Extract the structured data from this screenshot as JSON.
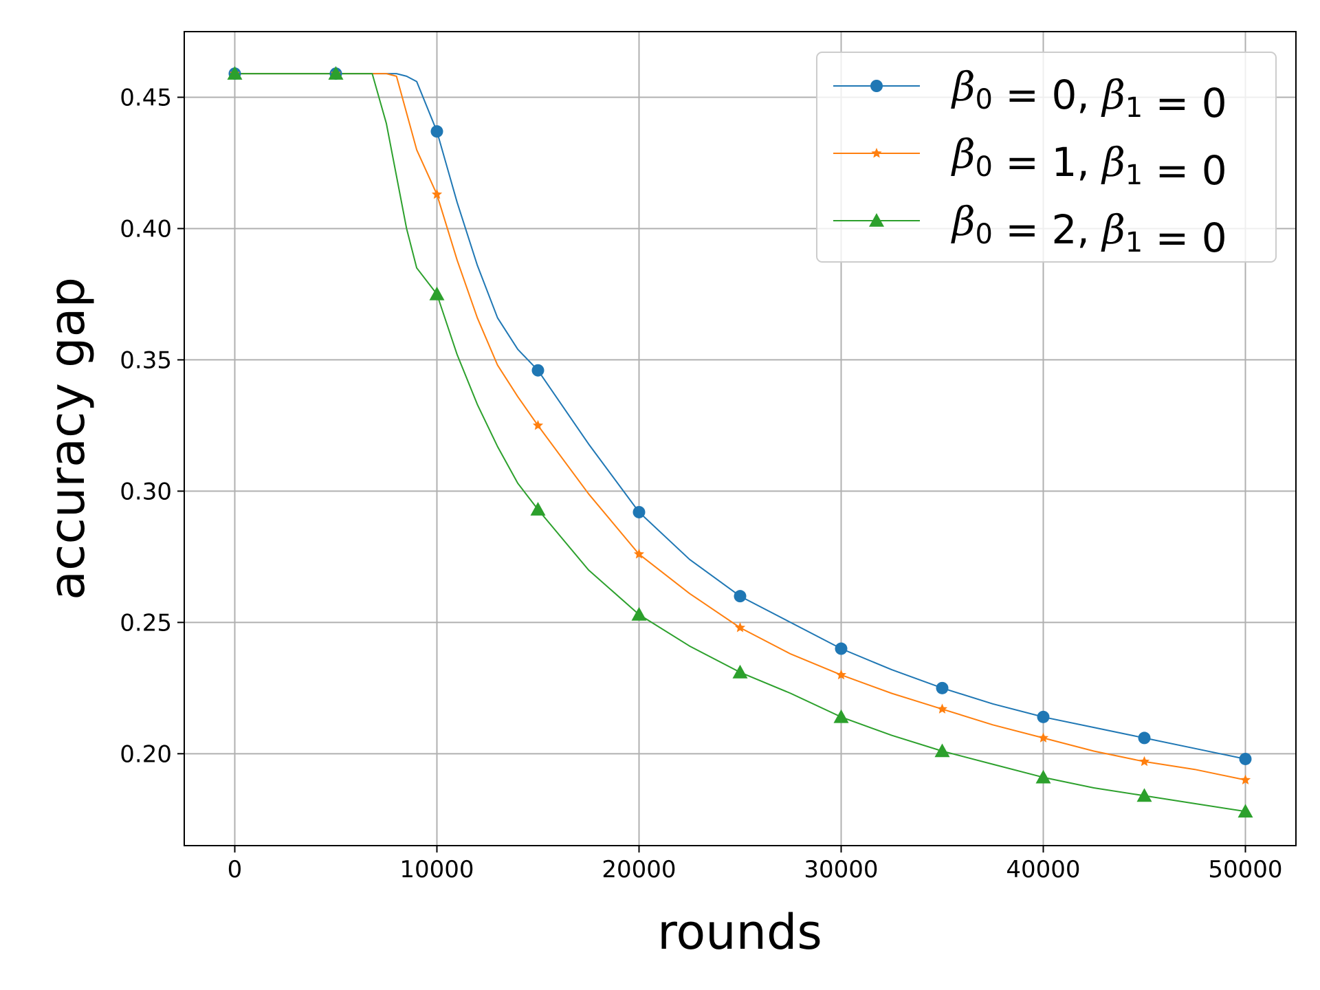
{
  "chart_data": {
    "type": "line",
    "xlabel": "rounds",
    "ylabel": "accuracy gap",
    "xlim": [
      -2500,
      52500
    ],
    "ylim": [
      0.165,
      0.475
    ],
    "xticks": [
      0,
      10000,
      20000,
      30000,
      40000,
      50000
    ],
    "yticks": [
      0.2,
      0.25,
      0.3,
      0.35,
      0.4,
      0.45
    ],
    "grid": true,
    "legend_position": "top-right",
    "series": [
      {
        "name": "β0 = 0, β1 = 0",
        "legend": {
          "a": "β",
          "a_sub": "0",
          "a_val": " = 0, ",
          "b": "β",
          "b_sub": "1",
          "b_val": " = 0"
        },
        "color": "#1f77b4",
        "marker": "circle",
        "x": [
          0,
          5000,
          8000,
          8500,
          9000,
          10000,
          11000,
          12000,
          13000,
          14000,
          15000,
          17500,
          20000,
          22500,
          25000,
          27500,
          30000,
          32500,
          35000,
          37500,
          40000,
          42500,
          45000,
          47500,
          50000
        ],
        "y": [
          0.459,
          0.459,
          0.459,
          0.458,
          0.456,
          0.437,
          0.41,
          0.386,
          0.366,
          0.354,
          0.346,
          0.318,
          0.292,
          0.274,
          0.26,
          0.25,
          0.24,
          0.232,
          0.225,
          0.219,
          0.214,
          0.21,
          0.206,
          0.202,
          0.198
        ],
        "marker_x": [
          0,
          5000,
          10000,
          15000,
          20000,
          25000,
          30000,
          35000,
          40000,
          45000,
          50000
        ]
      },
      {
        "name": "β0 = 1, β1 = 0",
        "legend": {
          "a": "β",
          "a_sub": "0",
          "a_val": " = 1, ",
          "b": "β",
          "b_sub": "1",
          "b_val": " = 0"
        },
        "color": "#ff7f0e",
        "marker": "star",
        "x": [
          0,
          5000,
          7500,
          8000,
          9000,
          10000,
          11000,
          12000,
          13000,
          14000,
          15000,
          17500,
          20000,
          22500,
          25000,
          27500,
          30000,
          32500,
          35000,
          37500,
          40000,
          42500,
          45000,
          47500,
          50000
        ],
        "y": [
          0.459,
          0.459,
          0.459,
          0.458,
          0.43,
          0.413,
          0.388,
          0.366,
          0.348,
          0.336,
          0.325,
          0.299,
          0.276,
          0.261,
          0.248,
          0.238,
          0.23,
          0.223,
          0.217,
          0.211,
          0.206,
          0.201,
          0.197,
          0.194,
          0.19
        ]
      },
      {
        "name": "β0 = 2, β1 = 0",
        "legend": {
          "a": "β",
          "a_sub": "0",
          "a_val": " = 2, ",
          "b": "β",
          "b_sub": "1",
          "b_val": " = 0"
        },
        "color": "#2ca02c",
        "marker": "triangle",
        "x": [
          0,
          5000,
          6800,
          7500,
          8500,
          9000,
          10000,
          11000,
          12000,
          13000,
          14000,
          15000,
          17500,
          20000,
          22500,
          25000,
          27500,
          30000,
          32500,
          35000,
          37500,
          40000,
          42500,
          45000,
          47500,
          50000
        ],
        "y": [
          0.459,
          0.459,
          0.459,
          0.44,
          0.4,
          0.385,
          0.375,
          0.352,
          0.333,
          0.317,
          0.303,
          0.293,
          0.27,
          0.253,
          0.241,
          0.231,
          0.223,
          0.214,
          0.207,
          0.201,
          0.196,
          0.191,
          0.187,
          0.184,
          0.181,
          0.178
        ]
      }
    ]
  }
}
